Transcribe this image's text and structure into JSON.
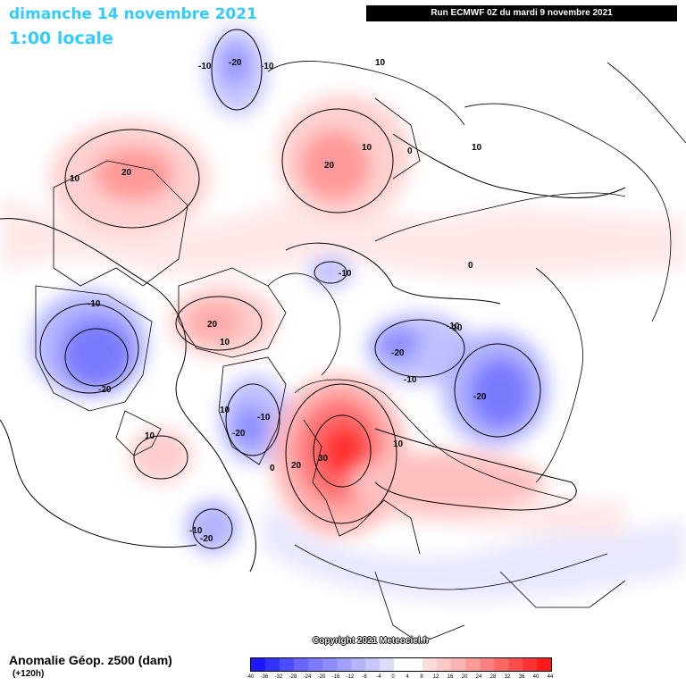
{
  "header": {
    "date": "dimanche 14 novembre 2021",
    "time": "1:00 locale",
    "run": "Run ECMWF 0Z du mardi 9 novembre 2021"
  },
  "footer": {
    "label": "Anomalie Géop. z500 (dam)",
    "lead": "(+120h)",
    "copyright": "Copyright 2021 Meteociel.fr"
  },
  "legend": {
    "ticks": [
      "-40",
      "-36",
      "-32",
      "-28",
      "-24",
      "-20",
      "-16",
      "-12",
      "-8",
      "-4",
      "0",
      "4",
      "8",
      "12",
      "16",
      "20",
      "24",
      "28",
      "32",
      "36",
      "40",
      "44"
    ],
    "colors": [
      "#1a1aff",
      "#3333ff",
      "#4d4dff",
      "#6666ff",
      "#7a7aff",
      "#8c8cff",
      "#a0a0ff",
      "#b4b4ff",
      "#c8c8ff",
      "#dcdcff",
      "#ffffff",
      "#ffffff",
      "#ffdcdc",
      "#ffc8c8",
      "#ffb4b4",
      "#ff9a9a",
      "#ff8080",
      "#ff6666",
      "#ff4d4d",
      "#ff3333",
      "#ff1a1a"
    ]
  },
  "contour_labels": [
    "-10",
    "-20",
    "-10",
    "10",
    "20",
    "10",
    "20",
    "10",
    "0",
    "10",
    "0",
    "10",
    "-10",
    "-20",
    "-10",
    "20",
    "10",
    "-10",
    "-10",
    "-20",
    "-10",
    "-20",
    "-10",
    "-20",
    "30",
    "20",
    "10",
    "0",
    "10",
    "-10",
    "-20"
  ],
  "icons": {
    "map": "geopotential-anomaly-map"
  }
}
